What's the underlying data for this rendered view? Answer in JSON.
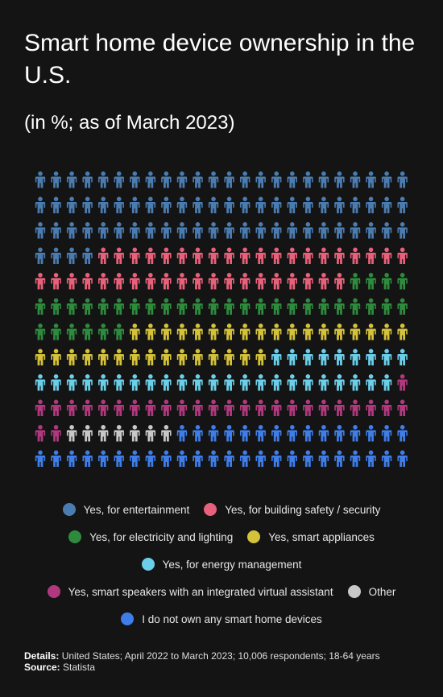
{
  "title": "Smart home device ownership in the U.S.",
  "subtitle": "(in %; as of March 2023)",
  "chart_data": {
    "type": "pictogram",
    "unit": "%",
    "grid": {
      "rows": 12,
      "columns": 24
    },
    "series": [
      {
        "name": "Yes, for entertainment",
        "value": 26.4,
        "color": "#4b7cb0"
      },
      {
        "name": "Yes, for building safety / security",
        "value": 13.9,
        "color": "#e8617a"
      },
      {
        "name": "Yes, for electricity and lighting",
        "value": 11.8,
        "color": "#2e8b3e"
      },
      {
        "name": "Yes, smart appliances",
        "value": 11.5,
        "color": "#d4c23a"
      },
      {
        "name": "Yes, for energy management",
        "value": 11.1,
        "color": "#6ccfea"
      },
      {
        "name": "Yes, smart speakers with an integrated virtual assistant",
        "value": 9.4,
        "color": "#b0397e"
      },
      {
        "name": "Other",
        "value": 2.4,
        "color": "#c8c8c8"
      },
      {
        "name": "I do not own any smart home devices",
        "value": 13.5,
        "color": "#3f7de8"
      }
    ]
  },
  "legend_rows": [
    [
      0,
      1
    ],
    [
      2,
      3
    ],
    [
      4
    ],
    [
      5,
      6
    ],
    [
      7
    ]
  ],
  "footer": {
    "details_label": "Details:",
    "details_text": "United States; April 2022 to March 2023; 10,006 respondents; 18-64 years",
    "source_label": "Source:",
    "source_text": "Statista"
  }
}
